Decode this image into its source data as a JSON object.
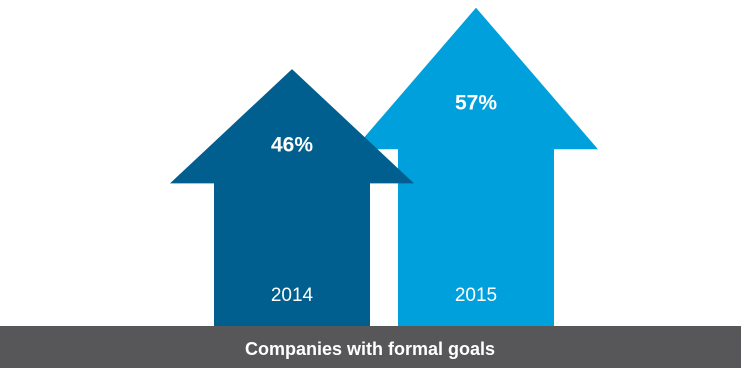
{
  "chart_data": {
    "type": "bar",
    "style": "arrow-bars",
    "categories": [
      "2014",
      "2015"
    ],
    "values": [
      46,
      57
    ],
    "value_labels": [
      "46%",
      "57%"
    ],
    "unit": "%",
    "caption": "Companies with formal goals",
    "colors": [
      "#005f8f",
      "#00a0dd"
    ],
    "caption_bar_color": "#57575a",
    "grid": false,
    "legend": "none"
  }
}
